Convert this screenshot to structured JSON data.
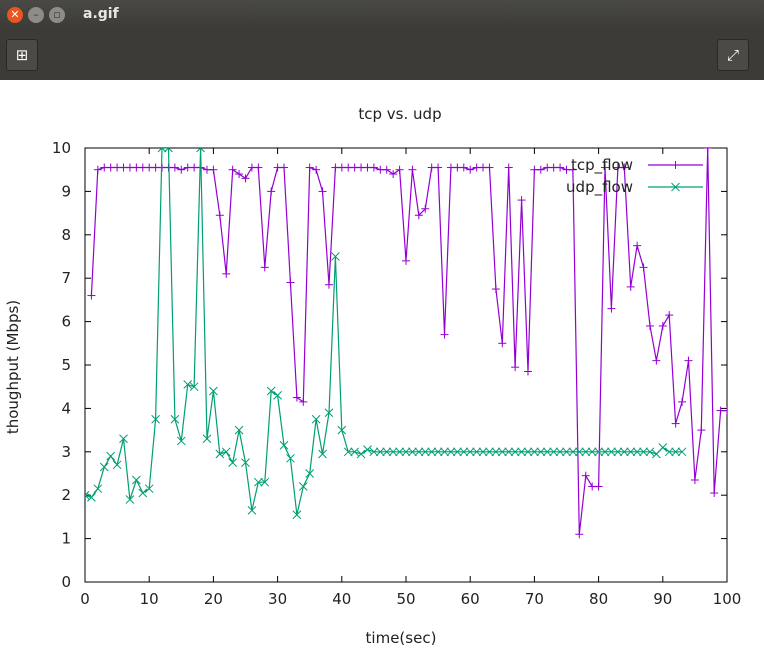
{
  "window": {
    "title": "a.gif"
  },
  "toolbar": {
    "add_icon": "plus-icon",
    "fullscreen_icon": "fullscreen-icon"
  },
  "chart_data": {
    "type": "line",
    "title": "tcp vs. udp",
    "xlabel": "time(sec)",
    "ylabel": "thoughput (Mbps)",
    "xlim": [
      0,
      100
    ],
    "ylim": [
      0,
      10
    ],
    "xticks": [
      0,
      10,
      20,
      30,
      40,
      50,
      60,
      70,
      80,
      90,
      100
    ],
    "yticks": [
      0,
      1,
      2,
      3,
      4,
      5,
      6,
      7,
      8,
      9,
      10
    ],
    "legend_position": "top-right",
    "grid": false,
    "series": [
      {
        "name": "tcp_flow",
        "legend_label": "tcp_flow",
        "color": "#9400d3",
        "marker": "plus",
        "x": [
          1,
          2,
          3,
          4,
          5,
          6,
          7,
          8,
          9,
          10,
          11,
          12,
          13,
          14,
          15,
          16,
          17,
          18,
          19,
          20,
          21,
          22,
          23,
          24,
          25,
          26,
          27,
          28,
          29,
          30,
          31,
          32,
          33,
          34,
          35,
          36,
          37,
          38,
          39,
          40,
          41,
          42,
          43,
          44,
          45,
          46,
          47,
          48,
          49,
          50,
          51,
          52,
          53,
          54,
          55,
          56,
          57,
          58,
          59,
          60,
          61,
          62,
          63,
          64,
          65,
          66,
          67,
          68,
          69,
          70,
          71,
          72,
          73,
          74,
          75,
          76,
          77,
          78,
          79,
          80,
          81,
          82,
          83,
          84,
          85,
          86,
          87,
          88,
          89,
          90,
          91,
          92,
          93,
          94,
          95,
          96,
          97,
          98,
          99,
          100
        ],
        "values": [
          6.6,
          9.5,
          9.55,
          9.55,
          9.55,
          9.55,
          9.55,
          9.55,
          9.55,
          9.55,
          9.55,
          9.55,
          9.55,
          9.55,
          9.5,
          9.55,
          9.55,
          9.55,
          9.5,
          9.5,
          8.45,
          7.1,
          9.5,
          9.4,
          9.3,
          9.55,
          9.55,
          7.25,
          9.0,
          9.55,
          9.55,
          6.9,
          4.25,
          4.15,
          9.55,
          9.5,
          9.0,
          6.85,
          9.55,
          9.55,
          9.55,
          9.55,
          9.55,
          9.55,
          9.55,
          9.5,
          9.5,
          9.4,
          9.5,
          7.4,
          9.5,
          8.45,
          8.6,
          9.55,
          9.55,
          5.7,
          9.55,
          9.55,
          9.55,
          9.5,
          9.55,
          9.55,
          9.55,
          6.75,
          5.5,
          9.55,
          4.95,
          8.8,
          4.85,
          9.5,
          9.5,
          9.55,
          9.55,
          9.55,
          9.5,
          9.5,
          1.1,
          2.45,
          2.2,
          2.2,
          9.55,
          6.3,
          9.55,
          9.55,
          6.8,
          7.75,
          7.25,
          5.9,
          5.1,
          5.9,
          6.15,
          3.65,
          4.15,
          5.1,
          2.35,
          3.5,
          10.0,
          2.05,
          3.95,
          3.95
        ]
      },
      {
        "name": "udp_flow",
        "legend_label": "udp_flow",
        "color": "#009e73",
        "marker": "cross",
        "x": [
          0,
          1,
          2,
          3,
          4,
          5,
          6,
          7,
          8,
          9,
          10,
          11,
          12,
          13,
          14,
          15,
          16,
          17,
          18,
          19,
          20,
          21,
          22,
          23,
          24,
          25,
          26,
          27,
          28,
          29,
          30,
          31,
          32,
          33,
          34,
          35,
          36,
          37,
          38,
          39,
          40,
          41,
          42,
          43,
          44,
          45,
          46,
          47,
          48,
          49,
          50,
          51,
          52,
          53,
          54,
          55,
          56,
          57,
          58,
          59,
          60,
          61,
          62,
          63,
          64,
          65,
          66,
          67,
          68,
          69,
          70,
          71,
          72,
          73,
          74,
          75,
          76,
          77,
          78,
          79,
          80,
          81,
          82,
          83,
          84,
          85,
          86,
          87,
          88,
          89,
          90,
          91,
          92,
          93
        ],
        "values": [
          2.0,
          1.95,
          2.15,
          2.65,
          2.9,
          2.7,
          3.3,
          1.9,
          2.35,
          2.05,
          2.15,
          3.75,
          10.0,
          10.0,
          3.75,
          3.25,
          4.55,
          4.5,
          10.0,
          3.3,
          4.4,
          2.95,
          3.0,
          2.75,
          3.5,
          2.75,
          1.65,
          2.3,
          2.3,
          4.4,
          4.3,
          3.15,
          2.85,
          1.55,
          2.2,
          2.5,
          3.75,
          2.95,
          3.9,
          7.5,
          3.5,
          3.0,
          3.0,
          2.95,
          3.05,
          3.0,
          3.0,
          3.0,
          3.0,
          3.0,
          3.0,
          3.0,
          3.0,
          3.0,
          3.0,
          3.0,
          3.0,
          3.0,
          3.0,
          3.0,
          3.0,
          3.0,
          3.0,
          3.0,
          3.0,
          3.0,
          3.0,
          3.0,
          3.0,
          3.0,
          3.0,
          3.0,
          3.0,
          3.0,
          3.0,
          3.0,
          3.0,
          3.0,
          3.0,
          3.0,
          3.0,
          3.0,
          3.0,
          3.0,
          3.0,
          3.0,
          3.0,
          3.0,
          3.0,
          2.95,
          3.1,
          3.0,
          3.0,
          3.0
        ]
      }
    ]
  }
}
